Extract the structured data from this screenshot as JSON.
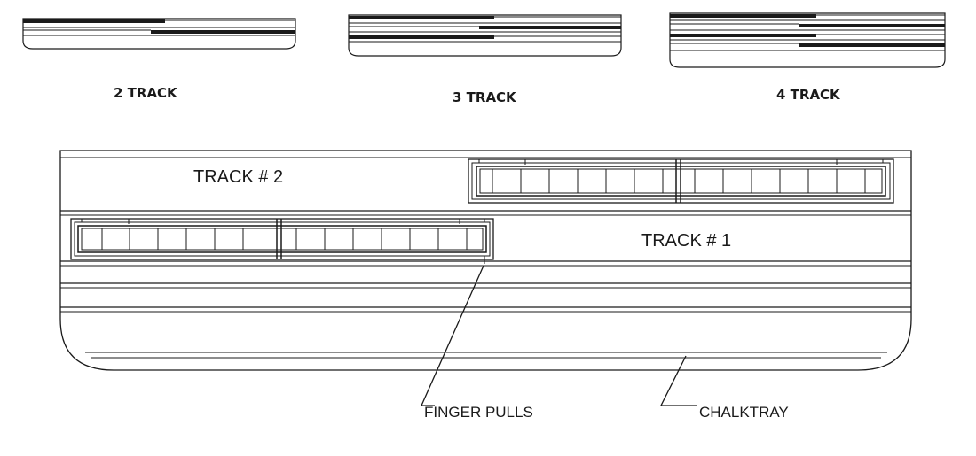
{
  "variants": [
    {
      "id": "two",
      "label": "2 TRACK",
      "tracks": 2
    },
    {
      "id": "three",
      "label": "3 TRACK",
      "tracks": 3
    },
    {
      "id": "four",
      "label": "4 TRACK",
      "tracks": 4
    }
  ],
  "main": {
    "track2_label": "TRACK # 2",
    "track1_label": "TRACK # 1"
  },
  "callouts": {
    "finger_pulls": "FINGER PULLS",
    "chalktray": "CHALKTRAY"
  },
  "colors": {
    "line": "#1a1a1a",
    "background": "#ffffff"
  }
}
